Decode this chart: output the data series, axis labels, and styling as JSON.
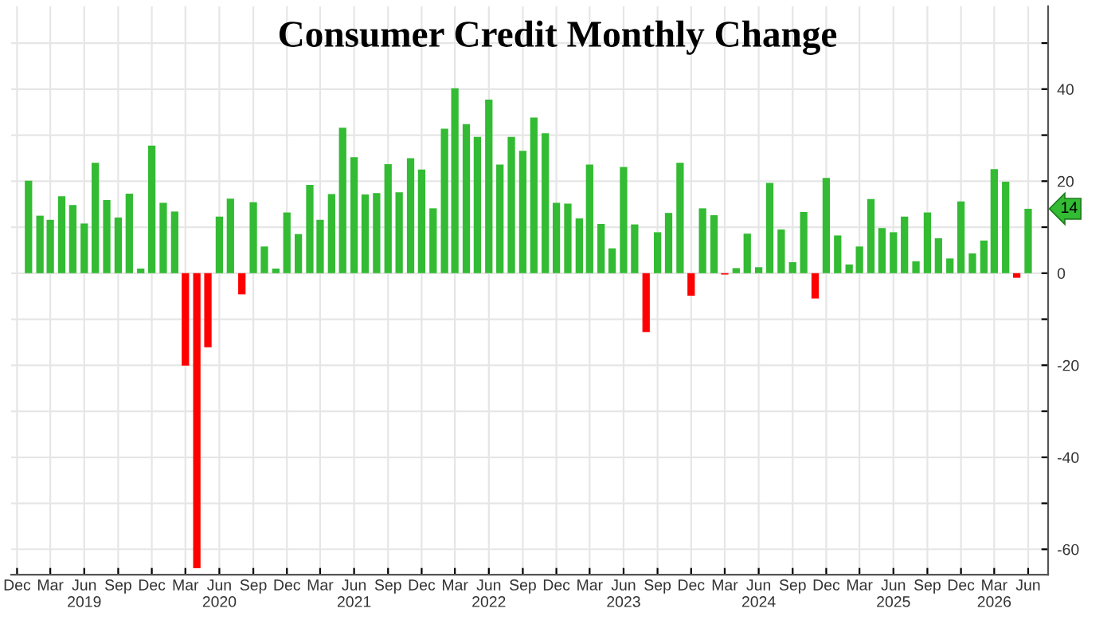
{
  "chart_data": {
    "type": "bar",
    "title": "Consumer Credit Monthly Change",
    "x": [
      "2019-01",
      "2019-02",
      "2019-03",
      "2019-04",
      "2019-05",
      "2019-06",
      "2019-07",
      "2019-08",
      "2019-09",
      "2019-10",
      "2019-11",
      "2019-12",
      "2020-01",
      "2020-02",
      "2020-03",
      "2020-04",
      "2020-05",
      "2020-06",
      "2020-07",
      "2020-08",
      "2020-09",
      "2020-10",
      "2020-11",
      "2020-12",
      "2021-01",
      "2021-02",
      "2021-03",
      "2021-04",
      "2021-05",
      "2021-06",
      "2021-07",
      "2021-08",
      "2021-09",
      "2021-10",
      "2021-11",
      "2021-12",
      "2022-01",
      "2022-02",
      "2022-03",
      "2022-04",
      "2022-05",
      "2022-06",
      "2022-07",
      "2022-08",
      "2022-09",
      "2022-10",
      "2022-11",
      "2022-12",
      "2023-01",
      "2023-02",
      "2023-03",
      "2023-04",
      "2023-05",
      "2023-06",
      "2023-07",
      "2023-08",
      "2023-09",
      "2023-10",
      "2023-11",
      "2023-12",
      "2024-01",
      "2024-02",
      "2024-03",
      "2024-04",
      "2024-05",
      "2024-06",
      "2024-07",
      "2024-08",
      "2024-09",
      "2024-10",
      "2024-11",
      "2024-12",
      "2025-01",
      "2025-02",
      "2025-03",
      "2025-04",
      "2025-05",
      "2025-06",
      "2025-07",
      "2025-08",
      "2025-09",
      "2025-10",
      "2025-11",
      "2025-12",
      "2026-01",
      "2026-02",
      "2026-03",
      "2026-04",
      "2026-05",
      "2026-06"
    ],
    "values": [
      20.1,
      12.5,
      11.6,
      16.7,
      14.8,
      10.8,
      24.0,
      15.9,
      12.1,
      17.3,
      1.0,
      27.7,
      15.3,
      13.4,
      -20.1,
      -64.1,
      -16.1,
      12.3,
      16.2,
      -4.6,
      15.4,
      5.8,
      1.0,
      13.2,
      8.5,
      19.2,
      11.6,
      17.2,
      31.6,
      25.2,
      17.1,
      17.4,
      23.7,
      17.6,
      25.0,
      22.5,
      14.1,
      31.4,
      40.2,
      32.4,
      29.6,
      37.7,
      23.6,
      29.6,
      26.6,
      33.8,
      30.4,
      15.3,
      15.1,
      11.9,
      23.6,
      10.7,
      5.4,
      23.1,
      10.6,
      -12.8,
      8.9,
      13.1,
      24.0,
      -4.9,
      14.1,
      12.6,
      -0.3,
      1.1,
      8.6,
      1.3,
      19.6,
      9.5,
      2.4,
      13.3,
      -5.5,
      20.7,
      8.2,
      1.9,
      5.8,
      16.1,
      9.8,
      8.9,
      12.3,
      2.6,
      13.2,
      7.6,
      3.2,
      15.6,
      4.3,
      7.1,
      22.6,
      19.9,
      -1.0,
      14
    ],
    "colors": [
      "#33bb33",
      "#33bb33",
      "#33bb33",
      "#33bb33",
      "#33bb33",
      "#33bb33",
      "#33bb33",
      "#33bb33",
      "#33bb33",
      "#33bb33",
      "#33bb33",
      "#33bb33",
      "#33bb33",
      "#33bb33",
      "#ff0000",
      "#ff0000",
      "#ff0000",
      "#33bb33",
      "#33bb33",
      "#ff0000",
      "#33bb33",
      "#33bb33",
      "#33bb33",
      "#33bb33",
      "#33bb33",
      "#33bb33",
      "#33bb33",
      "#33bb33",
      "#33bb33",
      "#33bb33",
      "#33bb33",
      "#33bb33",
      "#33bb33",
      "#33bb33",
      "#33bb33",
      "#33bb33",
      "#33bb33",
      "#33bb33",
      "#33bb33",
      "#33bb33",
      "#33bb33",
      "#33bb33",
      "#33bb33",
      "#33bb33",
      "#33bb33",
      "#33bb33",
      "#33bb33",
      "#33bb33",
      "#33bb33",
      "#33bb33",
      "#33bb33",
      "#33bb33",
      "#33bb33",
      "#33bb33",
      "#33bb33",
      "#ff0000",
      "#33bb33",
      "#33bb33",
      "#33bb33",
      "#ff0000",
      "#33bb33",
      "#33bb33",
      "#ff0000",
      "#33bb33",
      "#33bb33",
      "#33bb33",
      "#33bb33",
      "#33bb33",
      "#33bb33",
      "#33bb33",
      "#ff0000",
      "#33bb33",
      "#33bb33",
      "#33bb33",
      "#33bb33",
      "#33bb33",
      "#33bb33",
      "#33bb33",
      "#33bb33",
      "#33bb33",
      "#33bb33",
      "#33bb33",
      "#33bb33",
      "#33bb33",
      "#33bb33",
      "#33bb33",
      "#33bb33",
      "#33bb33",
      "#ff0000",
      "#33bb33"
    ],
    "xlim": [
      "2018-11-15",
      "2026-07-25"
    ],
    "xticks": [
      {
        "value": "2018-12",
        "label": "Dec"
      },
      {
        "value": "2019-03",
        "label": "Mar"
      },
      {
        "value": "2019-06",
        "label": "Jun\n2019"
      },
      {
        "value": "2019-09",
        "label": "Sep"
      },
      {
        "value": "2019-12",
        "label": "Dec"
      },
      {
        "value": "2020-03",
        "label": "Mar"
      },
      {
        "value": "2020-06",
        "label": "Jun\n2020"
      },
      {
        "value": "2020-09",
        "label": "Sep"
      },
      {
        "value": "2020-12",
        "label": "Dec"
      },
      {
        "value": "2021-03",
        "label": "Mar"
      },
      {
        "value": "2021-06",
        "label": "Jun\n2021"
      },
      {
        "value": "2021-09",
        "label": "Sep"
      },
      {
        "value": "2021-12",
        "label": "Dec"
      },
      {
        "value": "2022-03",
        "label": "Mar"
      },
      {
        "value": "2022-06",
        "label": "Jun\n2022"
      },
      {
        "value": "2022-09",
        "label": "Sep"
      },
      {
        "value": "2022-12",
        "label": "Dec"
      },
      {
        "value": "2023-03",
        "label": "Mar"
      },
      {
        "value": "2023-06",
        "label": "Jun\n2023"
      },
      {
        "value": "2023-09",
        "label": "Sep"
      },
      {
        "value": "2023-12",
        "label": "Dec"
      },
      {
        "value": "2024-03",
        "label": "Mar"
      },
      {
        "value": "2024-06",
        "label": "Jun\n2024"
      },
      {
        "value": "2024-09",
        "label": "Sep"
      },
      {
        "value": "2024-12",
        "label": "Dec"
      },
      {
        "value": "2025-03",
        "label": "Mar"
      },
      {
        "value": "2025-06",
        "label": "Jun\n2025"
      },
      {
        "value": "2025-09",
        "label": "Sep"
      },
      {
        "value": "2025-12",
        "label": "Dec"
      },
      {
        "value": "2026-03",
        "label": "Mar\n2026"
      },
      {
        "value": "2026-06",
        "label": "Jun"
      }
    ],
    "ylim": [
      -65.5,
      58
    ],
    "yticks": [
      {
        "value": -60,
        "label": "-60"
      },
      {
        "value": -50,
        "label": null
      },
      {
        "value": -40,
        "label": "-40"
      },
      {
        "value": -30,
        "label": null
      },
      {
        "value": -20,
        "label": "-20"
      },
      {
        "value": -10,
        "label": null
      },
      0,
      {
        "value": 10,
        "label": null
      },
      20,
      {
        "value": 30,
        "label": null
      },
      40,
      {
        "value": 50,
        "label": null
      }
    ],
    "annotations": [
      {
        "text": "14",
        "x": "2026-06",
        "y": 14
      }
    ],
    "grid": true,
    "legend": false
  }
}
